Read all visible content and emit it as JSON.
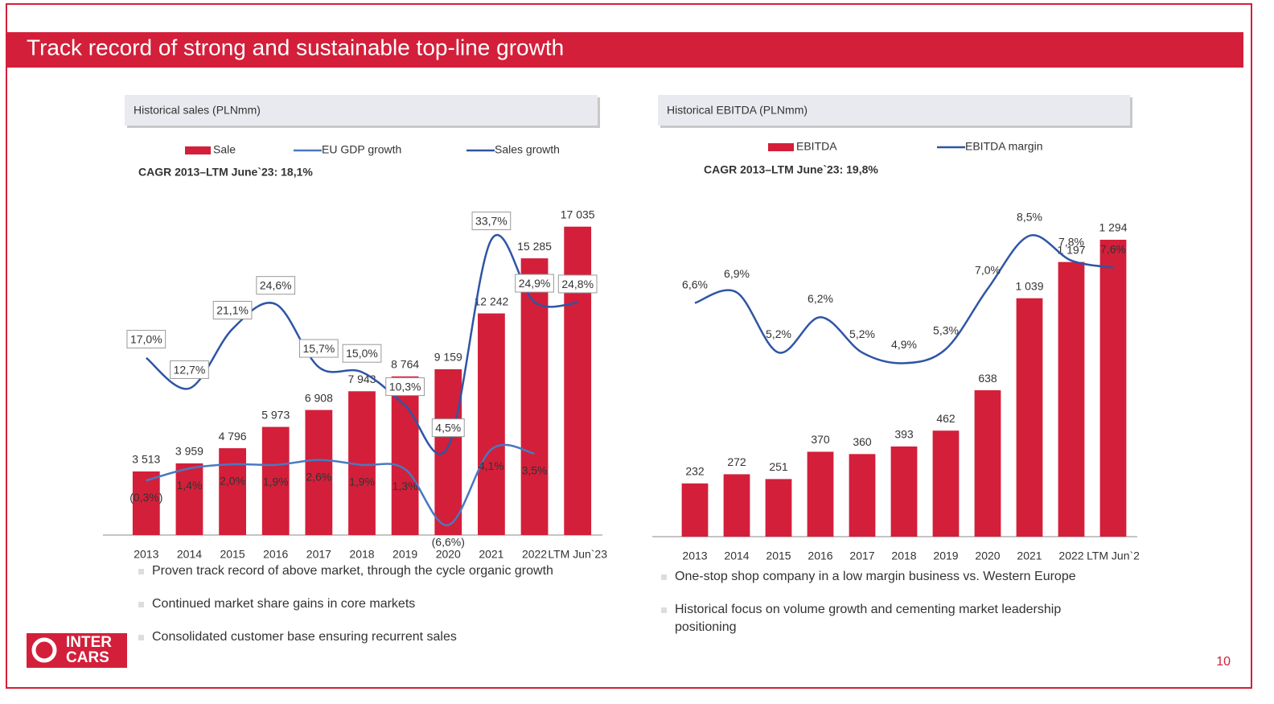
{
  "header": {
    "title": "Track record of strong and sustainable top-line growth"
  },
  "chart_data": [
    {
      "type": "bar",
      "title": "Historical sales (PLNmm)",
      "subtitle": "CAGR 2013–LTM June`23: 18,1%",
      "categories": [
        "2013",
        "2014",
        "2015",
        "2016",
        "2017",
        "2018",
        "2019",
        "2020",
        "2021",
        "2022",
        "LTM Jun`23"
      ],
      "series": [
        {
          "name": "Sale",
          "type": "bar",
          "color": "#d31f3a",
          "values": [
            3513,
            3959,
            4796,
            5973,
            6908,
            7943,
            8764,
            9159,
            12242,
            15285,
            17035
          ],
          "value_labels": [
            "3 513",
            "3 959",
            "4 796",
            "5 973",
            "6 908",
            "7 943",
            "8 764",
            "9 159",
            "12 242",
            "15 285",
            "17 035"
          ]
        },
        {
          "name": "EU GDP growth",
          "type": "line",
          "axis": "y2",
          "color": "#4a78c2",
          "values": [
            -0.3,
            1.4,
            2.0,
            1.9,
            2.6,
            1.9,
            1.3,
            -6.6,
            4.1,
            3.5,
            null
          ],
          "value_labels": [
            "(0,3%)",
            "1,4%",
            "2,0%",
            "1,9%",
            "2,6%",
            "1,9%",
            "1,3%",
            "(6,6%)",
            "4,1%",
            "3,5%",
            null
          ]
        },
        {
          "name": "Sales growth",
          "type": "line",
          "axis": "y2",
          "color": "#2f55a4",
          "values": [
            17.0,
            12.7,
            21.1,
            24.6,
            15.7,
            15.0,
            10.3,
            4.5,
            33.7,
            24.9,
            24.8
          ],
          "value_labels": [
            "17,0%",
            "12,7%",
            "21,1%",
            "24,6%",
            "15,7%",
            "15,0%",
            "10,3%",
            "4,5%",
            "33,7%",
            "24,9%",
            "24,8%"
          ]
        }
      ],
      "ylim": [
        0,
        18000
      ],
      "y2lim": [
        -8,
        38
      ]
    },
    {
      "type": "bar",
      "title": "Historical EBITDA (PLNmm)",
      "subtitle": "CAGR 2013–LTM June`23: 19,8%",
      "categories": [
        "2013",
        "2014",
        "2015",
        "2016",
        "2017",
        "2018",
        "2019",
        "2020",
        "2021",
        "2022",
        "LTM Jun`2"
      ],
      "series": [
        {
          "name": "EBITDA",
          "type": "bar",
          "color": "#d31f3a",
          "values": [
            232,
            272,
            251,
            370,
            360,
            393,
            462,
            638,
            1039,
            1197,
            1294
          ],
          "value_labels": [
            "232",
            "272",
            "251",
            "370",
            "360",
            "393",
            "462",
            "638",
            "1 039",
            "1 197",
            "1 294"
          ]
        },
        {
          "name": "EBITDA margin",
          "type": "line",
          "axis": "y2",
          "color": "#2f55a4",
          "values": [
            6.6,
            6.9,
            5.2,
            6.2,
            5.2,
            4.9,
            5.3,
            7.0,
            8.5,
            7.8,
            7.6
          ],
          "value_labels": [
            "6,6%",
            "6,9%",
            "5,2%",
            "6,2%",
            "5,2%",
            "4,9%",
            "5,3%",
            "7,0%",
            "8,5%",
            "7,8%",
            "7,6%"
          ]
        }
      ],
      "ylim": [
        0,
        1350
      ],
      "y2lim": [
        0,
        8.75
      ]
    }
  ],
  "bullets_left": [
    "Proven track record of above market, through the cycle organic growth",
    "Continued market share gains in core markets",
    "Consolidated customer base ensuring recurrent sales"
  ],
  "bullets_right": [
    "One-stop shop company in a low margin business vs. Western Europe",
    "Historical focus on volume growth and cementing market leadership positioning"
  ],
  "logo": {
    "line1": "INTER",
    "line2": "CARS"
  },
  "page_number": "10"
}
